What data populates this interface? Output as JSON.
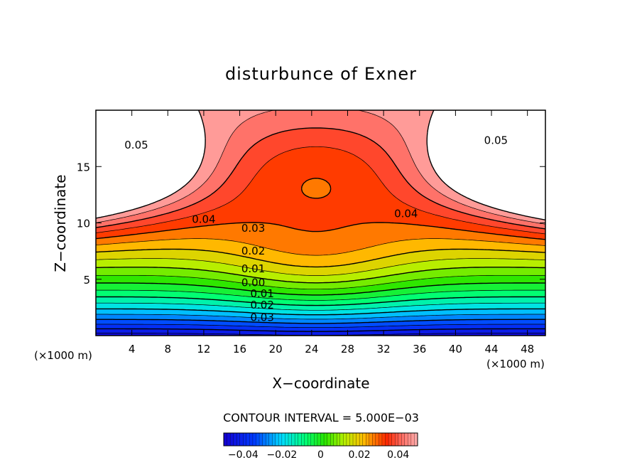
{
  "chart_data": {
    "type": "heatmap",
    "title": "disturbunce of Exner",
    "xlabel": "X−coordinate",
    "ylabel": "Z−coordinate",
    "x_unit_left": "(×1000 m)",
    "x_unit_right": "(×1000 m)",
    "xlim": [
      0,
      50
    ],
    "ylim": [
      0,
      20
    ],
    "x_ticks": [
      4,
      8,
      12,
      16,
      20,
      24,
      28,
      32,
      36,
      40,
      44,
      48
    ],
    "x_tick_labels": [
      "4",
      "8",
      "12",
      "16",
      "20",
      "24",
      "28",
      "32",
      "36",
      "40",
      "44",
      "48"
    ],
    "y_ticks": [
      5,
      10,
      15
    ],
    "y_tick_labels": [
      "5",
      "10",
      "15"
    ],
    "contour_interval_text": "CONTOUR INTERVAL = 5.000E−03",
    "contour_interval": 0.005,
    "contour_labels": [
      {
        "text": "0.05",
        "x": 4.5,
        "y": 16.6
      },
      {
        "text": "0.05",
        "x": 44.5,
        "y": 17.0
      },
      {
        "text": "0.04",
        "x": 12.0,
        "y": 10.0
      },
      {
        "text": "0.04",
        "x": 34.5,
        "y": 10.5
      },
      {
        "text": "0.03",
        "x": 17.5,
        "y": 9.2
      },
      {
        "text": "0.02",
        "x": 17.5,
        "y": 7.2
      },
      {
        "text": "0.01",
        "x": 17.5,
        "y": 5.6
      },
      {
        "text": "0.00",
        "x": 17.5,
        "y": 4.4
      },
      {
        "text": "0.01",
        "x": 18.5,
        "y": 3.4
      },
      {
        "text": "0.02",
        "x": 18.5,
        "y": 2.4
      },
      {
        "text": "0.03",
        "x": 18.5,
        "y": 1.3
      }
    ],
    "colorbar_ticks": [
      -0.04,
      -0.02,
      0,
      0.02,
      0.04
    ],
    "colorbar_tick_labels": [
      "−0.04",
      "−0.02",
      "0",
      "0.02",
      "0.04"
    ],
    "colorbar_range": [
      -0.05,
      0.05
    ],
    "white_regions": "values above 0.05 at upper-left and upper-right",
    "colors": {
      "low": "#1a00e0",
      "mid": "#00ff00",
      "high": "#ff1a00",
      "cap": "#ffffff"
    }
  }
}
